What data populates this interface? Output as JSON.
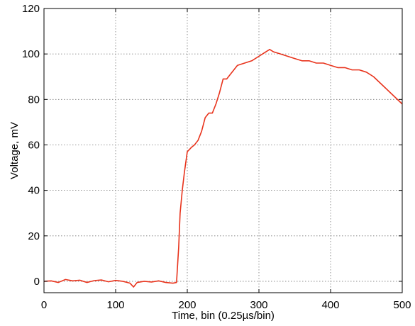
{
  "chart_data": {
    "type": "line",
    "title": "",
    "xlabel": "Time, bin (0.25µs/bin)",
    "ylabel": "Voltage, mV",
    "xlim": [
      0,
      500
    ],
    "ylim": [
      -5,
      120
    ],
    "x_ticks": [
      0,
      100,
      200,
      300,
      400,
      500
    ],
    "y_ticks": [
      0,
      20,
      40,
      60,
      80,
      100,
      120
    ],
    "grid": true,
    "legend": "none",
    "line_color": "#e8331c",
    "series": [
      {
        "points": [
          [
            0,
            0.0
          ],
          [
            10,
            0.2
          ],
          [
            20,
            -0.5
          ],
          [
            30,
            0.8
          ],
          [
            40,
            0.2
          ],
          [
            50,
            0.5
          ],
          [
            60,
            -0.5
          ],
          [
            70,
            0.3
          ],
          [
            80,
            0.6
          ],
          [
            90,
            -0.2
          ],
          [
            100,
            0.4
          ],
          [
            110,
            0.0
          ],
          [
            120,
            -0.8
          ],
          [
            125,
            -2.5
          ],
          [
            130,
            -0.5
          ],
          [
            140,
            0.0
          ],
          [
            150,
            -0.3
          ],
          [
            160,
            0.2
          ],
          [
            170,
            -0.5
          ],
          [
            180,
            -0.8
          ],
          [
            185,
            -0.5
          ],
          [
            188,
            15
          ],
          [
            190,
            30
          ],
          [
            193,
            40
          ],
          [
            196,
            48
          ],
          [
            200,
            57
          ],
          [
            203,
            58
          ],
          [
            206,
            59
          ],
          [
            210,
            60
          ],
          [
            215,
            62
          ],
          [
            220,
            66
          ],
          [
            225,
            72
          ],
          [
            230,
            74
          ],
          [
            235,
            74
          ],
          [
            240,
            78
          ],
          [
            245,
            83
          ],
          [
            250,
            89
          ],
          [
            255,
            89
          ],
          [
            260,
            91
          ],
          [
            265,
            93
          ],
          [
            270,
            95
          ],
          [
            280,
            96
          ],
          [
            290,
            97
          ],
          [
            300,
            99
          ],
          [
            305,
            100
          ],
          [
            310,
            101
          ],
          [
            315,
            102
          ],
          [
            320,
            101
          ],
          [
            330,
            100
          ],
          [
            340,
            99
          ],
          [
            350,
            98
          ],
          [
            360,
            97
          ],
          [
            370,
            97
          ],
          [
            380,
            96
          ],
          [
            390,
            96
          ],
          [
            400,
            95
          ],
          [
            410,
            94
          ],
          [
            420,
            94
          ],
          [
            430,
            93
          ],
          [
            440,
            93
          ],
          [
            450,
            92
          ],
          [
            460,
            90
          ],
          [
            470,
            87
          ],
          [
            480,
            84
          ],
          [
            490,
            81
          ],
          [
            500,
            78
          ]
        ]
      }
    ]
  }
}
